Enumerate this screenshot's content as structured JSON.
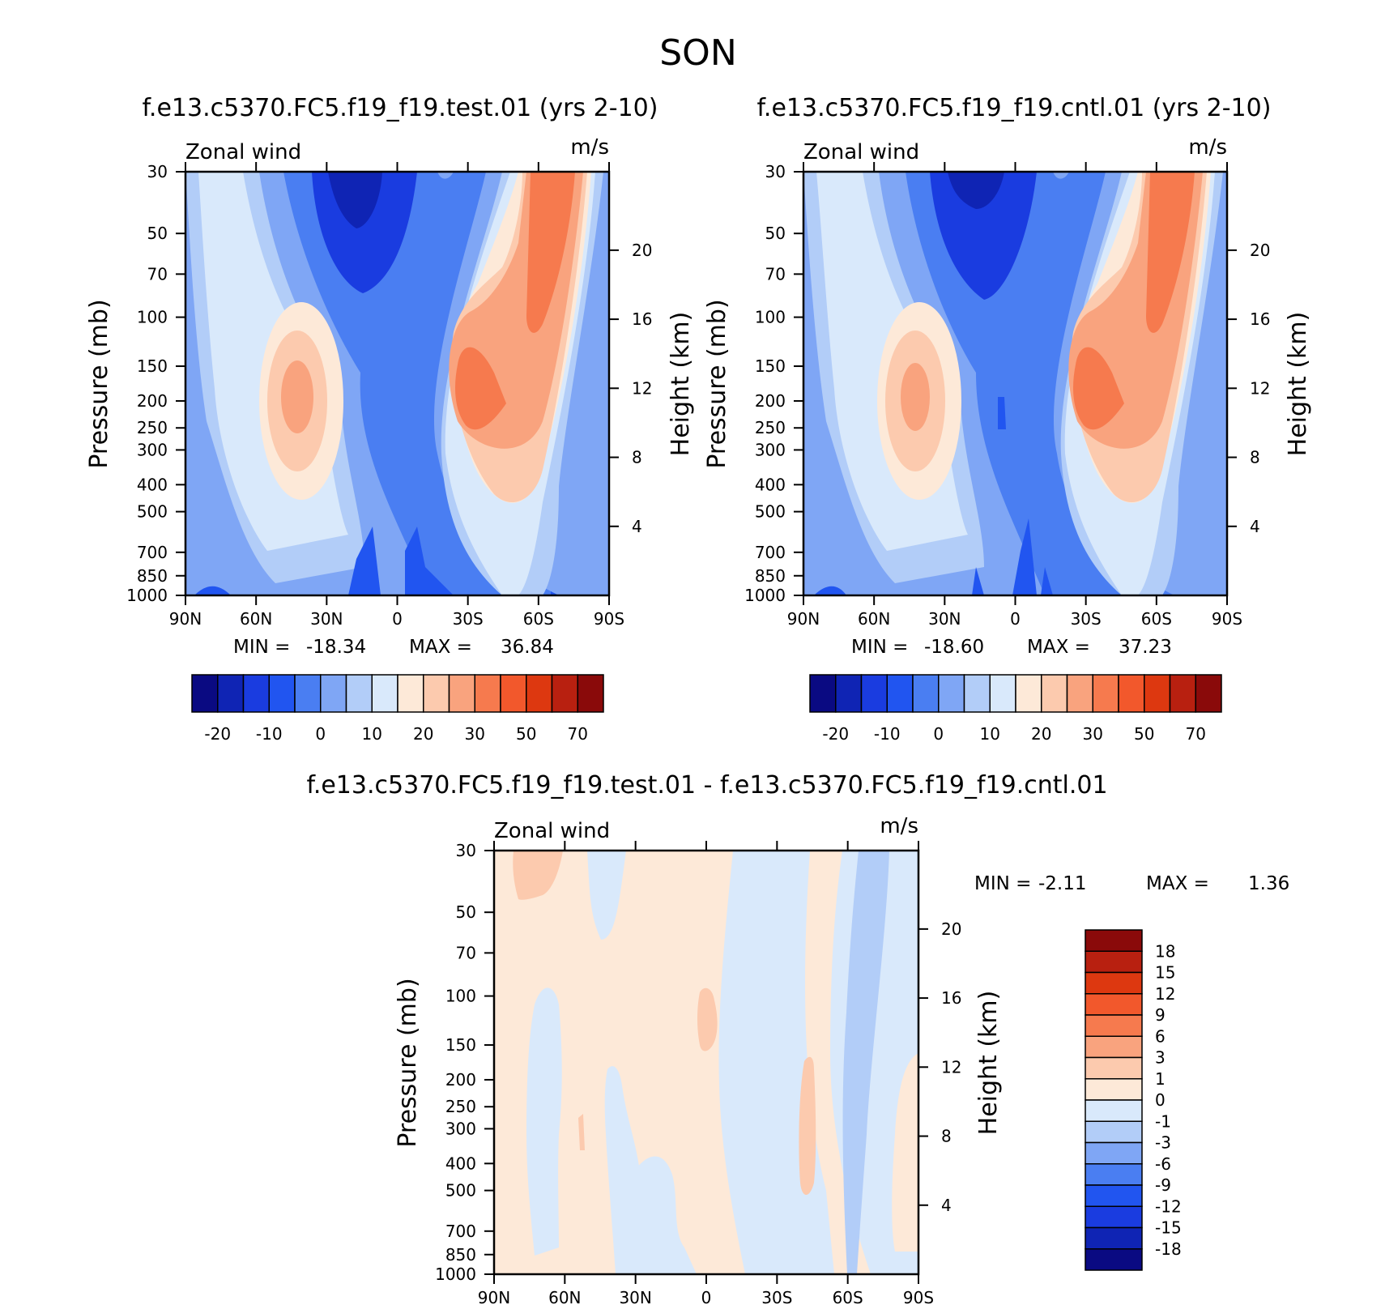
{
  "figure": {
    "title": "SON"
  },
  "chart_data": [
    {
      "type": "heatmap",
      "panel": "test",
      "title": "f.e13.c5370.FC5.f19_f19.test.01 (yrs 2-10)",
      "variable_label": "Zonal wind",
      "units_label": "m/s",
      "ylabel": "Pressure (mb)",
      "ylabel_right": "Height (km)",
      "x_ticks": [
        "90N",
        "60N",
        "30N",
        "0",
        "30S",
        "60S",
        "90S"
      ],
      "y_ticks": [
        "30",
        "50",
        "70",
        "100",
        "150",
        "200",
        "250",
        "300",
        "400",
        "500",
        "700",
        "850",
        "1000"
      ],
      "height_ticks": [
        "4",
        "8",
        "12",
        "16",
        "20"
      ],
      "xlim": [
        90,
        -90
      ],
      "ylim": [
        1000,
        30
      ],
      "y_scale": "log",
      "min_label": "MIN =",
      "min_value": "-18.34",
      "max_label": "MAX =",
      "max_value": "36.84",
      "colorbar": {
        "orientation": "horizontal",
        "levels": [
          "-20",
          "-10",
          "0",
          "10",
          "20",
          "30",
          "50",
          "70"
        ],
        "colors": [
          "#0a0a82",
          "#0f24b4",
          "#1a3ce0",
          "#2155f0",
          "#4a7ef2",
          "#7fa6f5",
          "#b2cdf8",
          "#d9e9fb",
          "#fde9d8",
          "#fccaae",
          "#f9a37e",
          "#f67a4e",
          "#f2582c",
          "#dd3810",
          "#b82010",
          "#8a0a0a"
        ]
      }
    },
    {
      "type": "heatmap",
      "panel": "cntl",
      "title": "f.e13.c5370.FC5.f19_f19.cntl.01 (yrs 2-10)",
      "variable_label": "Zonal wind",
      "units_label": "m/s",
      "ylabel": "Pressure (mb)",
      "ylabel_right": "Height (km)",
      "x_ticks": [
        "90N",
        "60N",
        "30N",
        "0",
        "30S",
        "60S",
        "90S"
      ],
      "y_ticks": [
        "30",
        "50",
        "70",
        "100",
        "150",
        "200",
        "250",
        "300",
        "400",
        "500",
        "700",
        "850",
        "1000"
      ],
      "height_ticks": [
        "4",
        "8",
        "12",
        "16",
        "20"
      ],
      "xlim": [
        90,
        -90
      ],
      "ylim": [
        1000,
        30
      ],
      "y_scale": "log",
      "min_label": "MIN =",
      "min_value": "-18.60",
      "max_label": "MAX =",
      "max_value": "37.23",
      "colorbar": {
        "orientation": "horizontal",
        "levels": [
          "-20",
          "-10",
          "0",
          "10",
          "20",
          "30",
          "50",
          "70"
        ],
        "colors": [
          "#0a0a82",
          "#0f24b4",
          "#1a3ce0",
          "#2155f0",
          "#4a7ef2",
          "#7fa6f5",
          "#b2cdf8",
          "#d9e9fb",
          "#fde9d8",
          "#fccaae",
          "#f9a37e",
          "#f67a4e",
          "#f2582c",
          "#dd3810",
          "#b82010",
          "#8a0a0a"
        ]
      }
    },
    {
      "type": "heatmap",
      "panel": "diff",
      "title": "f.e13.c5370.FC5.f19_f19.test.01 - f.e13.c5370.FC5.f19_f19.cntl.01",
      "variable_label": "Zonal wind",
      "units_label": "m/s",
      "ylabel": "Pressure (mb)",
      "ylabel_right": "Height (km)",
      "x_ticks": [
        "90N",
        "60N",
        "30N",
        "0",
        "30S",
        "60S",
        "90S"
      ],
      "y_ticks": [
        "30",
        "50",
        "70",
        "100",
        "150",
        "200",
        "250",
        "300",
        "400",
        "500",
        "700",
        "850",
        "1000"
      ],
      "height_ticks": [
        "4",
        "8",
        "12",
        "16",
        "20"
      ],
      "xlim": [
        90,
        -90
      ],
      "ylim": [
        1000,
        30
      ],
      "y_scale": "log",
      "min_label": "MIN =",
      "min_value": "-2.11",
      "max_label": "MAX =",
      "max_value": "1.36",
      "colorbar": {
        "orientation": "vertical",
        "levels": [
          "18",
          "15",
          "12",
          "9",
          "6",
          "3",
          "1",
          "0",
          "-1",
          "-3",
          "-6",
          "-9",
          "-12",
          "-15",
          "-18"
        ],
        "colors": [
          "#8a0a0a",
          "#b82010",
          "#dd3810",
          "#f2582c",
          "#f67a4e",
          "#f9a37e",
          "#fccaae",
          "#fde9d8",
          "#d9e9fb",
          "#b2cdf8",
          "#7fa6f5",
          "#4a7ef2",
          "#2155f0",
          "#1a3ce0",
          "#0f24b4",
          "#0a0a82"
        ]
      }
    }
  ]
}
